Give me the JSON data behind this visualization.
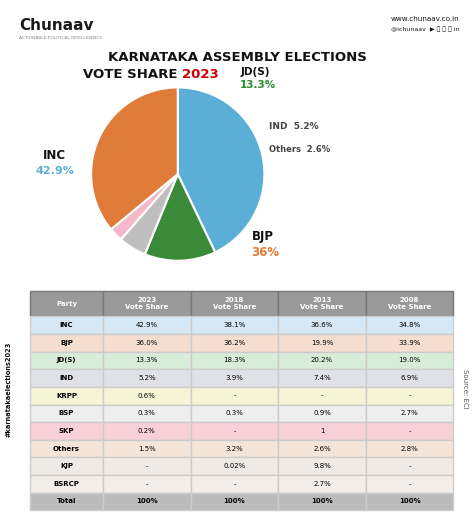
{
  "title_line1": "KARNATAKA ASSEMBLY ELECTIONS",
  "title_line2": "VOTE SHARE ",
  "title_year": "2023",
  "pie_labels": [
    "INC",
    "JD(S)",
    "IND",
    "Others",
    "BJP"
  ],
  "pie_values": [
    42.9,
    13.3,
    5.2,
    2.6,
    36.0
  ],
  "pie_colors": [
    "#5BAFD6",
    "#3A8A3A",
    "#BEBEBE",
    "#F4B8C8",
    "#E07B39"
  ],
  "pie_label_colors": [
    "#5BAFD6",
    "#2A8A2A",
    "#444444",
    "#444444",
    "#E07B39"
  ],
  "table_headers": [
    "Party",
    "2023\nVote Share",
    "2018\nVote Share",
    "2013\nVote Share",
    "2008\nVote Share"
  ],
  "table_rows": [
    [
      "INC",
      "42.9%",
      "38.1%",
      "36.6%",
      "34.8%"
    ],
    [
      "BJP",
      "36.0%",
      "36.2%",
      "19.9%",
      "33.9%"
    ],
    [
      "JD(S)",
      "13.3%",
      "18.3%",
      "20.2%",
      "19.0%"
    ],
    [
      "IND",
      "5.2%",
      "3.9%",
      "7.4%",
      "6.9%"
    ],
    [
      "KRPP",
      "0.6%",
      "-",
      "-",
      "-"
    ],
    [
      "BSP",
      "0.3%",
      "0.3%",
      "0.9%",
      "2.7%"
    ],
    [
      "SKP",
      "0.2%",
      "-",
      "1",
      "-"
    ],
    [
      "Others",
      "1.5%",
      "3.2%",
      "2.6%",
      "2.8%"
    ],
    [
      "KJP",
      "-",
      "0.02%",
      "9.8%",
      "-"
    ],
    [
      "BSRCP",
      "-",
      "-",
      "2.7%",
      "-"
    ],
    [
      "Total",
      "100%",
      "100%",
      "100%",
      "100%"
    ]
  ],
  "row_colors": [
    [
      "#D6E8F5",
      "#D6E8F5",
      "#D6E8F5",
      "#D6E8F5",
      "#D6E8F5"
    ],
    [
      "#F5DDD0",
      "#F5DDD0",
      "#F5DDD0",
      "#F5DDD0",
      "#F5DDD0"
    ],
    [
      "#D8EDD8",
      "#D8EDD8",
      "#D8EDD8",
      "#D8EDD8",
      "#D8EDD8"
    ],
    [
      "#E0E0E8",
      "#E0E0E8",
      "#E0E0E8",
      "#E0E0E8",
      "#E0E0E8"
    ],
    [
      "#F5F5D5",
      "#F5F5D5",
      "#F5F5D5",
      "#F5F5D5",
      "#F5F5D5"
    ],
    [
      "#EEEEEE",
      "#EEEEEE",
      "#EEEEEE",
      "#EEEEEE",
      "#EEEEEE"
    ],
    [
      "#F8D0D8",
      "#F8D0D8",
      "#F8D0D8",
      "#F8D0D8",
      "#F8D0D8"
    ],
    [
      "#F5E5D8",
      "#F5E5D8",
      "#F5E5D8",
      "#F5E5D8",
      "#F5E5D8"
    ],
    [
      "#F0EAE4",
      "#F0EAE4",
      "#F0EAE4",
      "#F0EAE4",
      "#F0EAE4"
    ],
    [
      "#F5EDE8",
      "#F5EDE8",
      "#F5EDE8",
      "#F5EDE8",
      "#F5EDE8"
    ],
    [
      "#BBBBBB",
      "#BBBBBB",
      "#BBBBBB",
      "#BBBBBB",
      "#BBBBBB"
    ]
  ],
  "header_color": "#999999",
  "bg_color": "#FFFFFF",
  "hashtag_text": "#karnatakaelections2023",
  "source_text": "Source: ECI",
  "website_text": "www.chunaav.co.in",
  "handle_text": "@ichunaav"
}
